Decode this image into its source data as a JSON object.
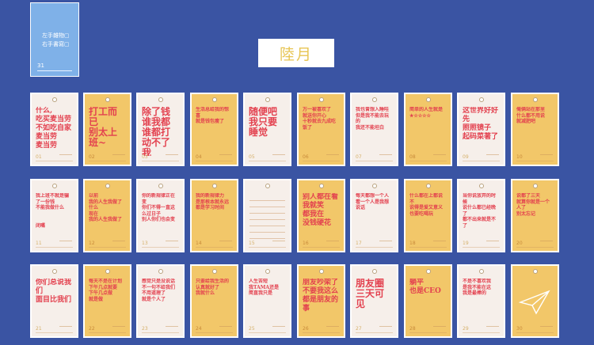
{
  "mini": {
    "line1": "左手雜物▢",
    "line2": "右手書寫▢",
    "num": "31"
  },
  "title": "陸月",
  "cards": [
    {
      "num": "01",
      "text": "什么,\n吃买麦当劳\n不如吃自家麦当劳\n麦当劳",
      "style": "mid",
      "theme": "w"
    },
    {
      "num": "02",
      "text": "打工而已\n别太上班~",
      "style": "big",
      "theme": "y"
    },
    {
      "num": "03",
      "text": "除了钱\n谁我都\n谁都打动不了我",
      "style": "big",
      "theme": "w"
    },
    {
      "num": "04",
      "text": "生活总给我的惊喜\n就是钱包瘦了",
      "style": "sm",
      "theme": "y"
    },
    {
      "num": "05",
      "text": "随便吧\n我只要睡觉",
      "style": "big",
      "theme": "w"
    },
    {
      "num": "06",
      "text": "万一被喜欢了\n就送你开心\n十秒就去九成吃饭了",
      "style": "sm",
      "theme": "y"
    },
    {
      "num": "07",
      "text": "我也曾想入睡哇\n但是我不能去玩的\n我还不能坦白",
      "style": "sm",
      "theme": "w"
    },
    {
      "num": "08",
      "text": "简单的人生就是\n★☆☆☆☆",
      "style": "sm",
      "theme": "y"
    },
    {
      "num": "09",
      "text": "这世界好好先\n照照镜子\n起码菜著了",
      "style": "mid",
      "theme": "w"
    },
    {
      "num": "10",
      "text": "俺俩站在那里\n什么都不用说\n就减肥吧",
      "style": "sm",
      "theme": "y"
    },
    {
      "num": "11",
      "text": "我上班不就是骗了一份钱\n不能我做什么\n\n\n闭嘴",
      "style": "sm",
      "theme": "w"
    },
    {
      "num": "12",
      "text": "以前\n我的人生我做了什么\n现在\n我的人生我做了",
      "style": "sm",
      "theme": "y"
    },
    {
      "num": "13",
      "text": "你的新规律正在变\n你们不得一直这么过日子\n别人你们也会变",
      "style": "sm",
      "theme": "w"
    },
    {
      "num": "14",
      "text": "我的新规律力\n是那根本就永远都是学习时间",
      "style": "sm",
      "theme": "y"
    },
    {
      "num": "15",
      "text": "",
      "style": "lines",
      "theme": "w"
    },
    {
      "num": "16",
      "text": "别人都在看我就笑\n都我在\n没钱硬花",
      "style": "mid",
      "theme": "y"
    },
    {
      "num": "17",
      "text": "每天都想一个人\n看一个人是我想说话",
      "style": "sm",
      "theme": "w"
    },
    {
      "num": "18",
      "text": "什么都在上都说不\n说得是爱又意义\n也要吃喝玩",
      "style": "sm",
      "theme": "y"
    },
    {
      "num": "19",
      "text": "当你说放弃的时候\n说什么都已经晚了\n都不出来就是不了",
      "style": "sm",
      "theme": "w"
    },
    {
      "num": "20",
      "text": "说都了三天\n就算你就是一个人了\n别太忘记",
      "style": "sm",
      "theme": "y"
    },
    {
      "num": "21",
      "text": "你们总说我们\n面目比我们",
      "style": "mid",
      "theme": "w"
    },
    {
      "num": "22",
      "text": "每天不是在计划\n下午几点就要\n下午几点做\n就是做",
      "style": "sm",
      "theme": "y"
    },
    {
      "num": "23",
      "text": "感觉只是没说话\n不一句不给我们\n不用道理了\n就是个人了",
      "style": "sm",
      "theme": "w"
    },
    {
      "num": "24",
      "text": "只要给我生活的\n认真就好了\n我就什么",
      "style": "sm",
      "theme": "y"
    },
    {
      "num": "25",
      "text": "人生苦短\n我TAMA还是\n简直我只是",
      "style": "sm",
      "theme": "w"
    },
    {
      "num": "26",
      "text": "朋友吵架了\n不要我这么\n都是朋友的事",
      "style": "mid",
      "theme": "y"
    },
    {
      "num": "27",
      "text": "朋友圈\n三天可见",
      "style": "big",
      "theme": "w"
    },
    {
      "num": "28",
      "text": "躺平\n也是CEO",
      "style": "mid",
      "theme": "y"
    },
    {
      "num": "29",
      "text": "不是不喜欢我\n是我不能在这\n我是最棒的",
      "style": "sm",
      "theme": "w"
    },
    {
      "num": "30",
      "text": "",
      "style": "plane",
      "theme": "y"
    }
  ]
}
